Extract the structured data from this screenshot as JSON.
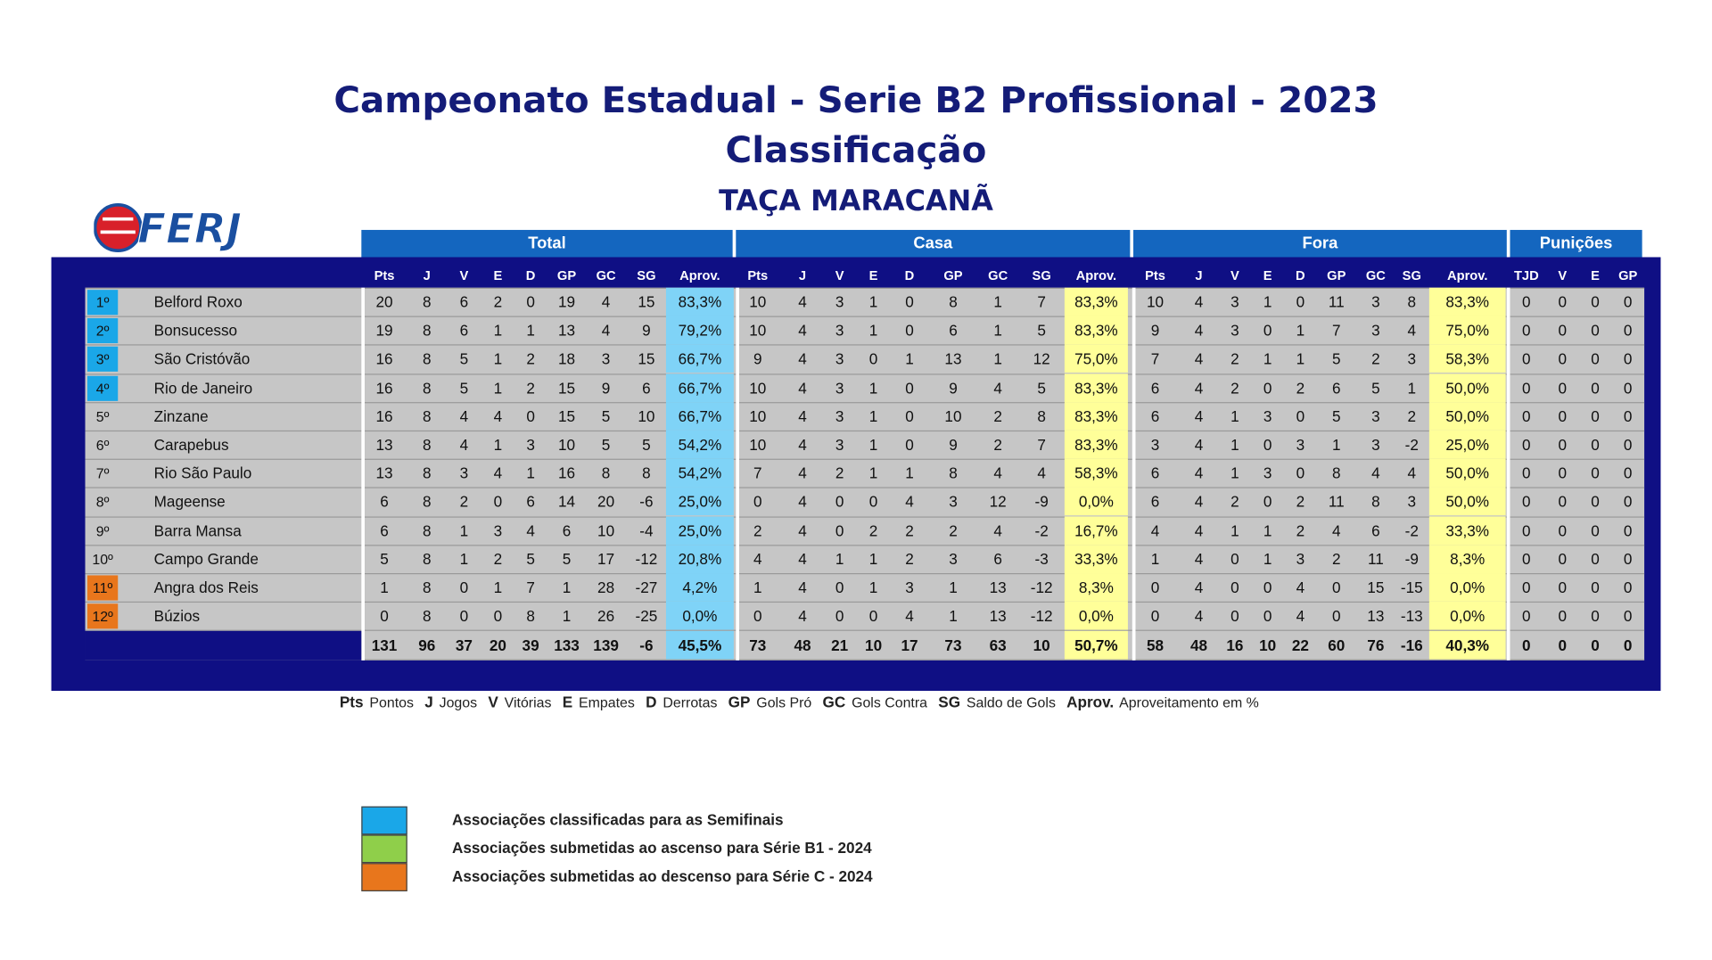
{
  "titles": {
    "main": "Campeonato Estadual - Serie B2 Profissional - 2023",
    "sub": "Classificação",
    "cup": "TAÇA MARACANÃ"
  },
  "logo": {
    "text": "FERJ",
    "colors": {
      "ball": "#d8202a",
      "letters": "#1a4fa0"
    }
  },
  "groups": {
    "total": "Total",
    "casa": "Casa",
    "fora": "Fora",
    "punicoes": "Punições"
  },
  "columns": {
    "block": [
      "Pts",
      "J",
      "V",
      "E",
      "D",
      "GP",
      "GC",
      "SG",
      "Aprov."
    ],
    "punicoes": [
      "TJD",
      "V",
      "E",
      "GP"
    ]
  },
  "colors": {
    "panel": "#0f0f84",
    "group_header": "#1466bf",
    "semifinal": "#1aa7e8",
    "ascenso": "#8fcf4a",
    "descenso": "#e8761c",
    "aprov_total": "#7fd3f7",
    "aprov_home_away": "#ffff99"
  },
  "rows": [
    {
      "rank": "1º",
      "team": "Belford Roxo",
      "status": "semifinal",
      "total": [
        "20",
        "8",
        "6",
        "2",
        "0",
        "19",
        "4",
        "15",
        "83,3%"
      ],
      "casa": [
        "10",
        "4",
        "3",
        "1",
        "0",
        "8",
        "1",
        "7",
        "83,3%"
      ],
      "fora": [
        "10",
        "4",
        "3",
        "1",
        "0",
        "11",
        "3",
        "8",
        "83,3%"
      ],
      "pun": [
        "0",
        "0",
        "0",
        "0"
      ]
    },
    {
      "rank": "2º",
      "team": "Bonsucesso",
      "status": "semifinal",
      "total": [
        "19",
        "8",
        "6",
        "1",
        "1",
        "13",
        "4",
        "9",
        "79,2%"
      ],
      "casa": [
        "10",
        "4",
        "3",
        "1",
        "0",
        "6",
        "1",
        "5",
        "83,3%"
      ],
      "fora": [
        "9",
        "4",
        "3",
        "0",
        "1",
        "7",
        "3",
        "4",
        "75,0%"
      ],
      "pun": [
        "0",
        "0",
        "0",
        "0"
      ]
    },
    {
      "rank": "3º",
      "team": "São Cristóvão",
      "status": "semifinal",
      "total": [
        "16",
        "8",
        "5",
        "1",
        "2",
        "18",
        "3",
        "15",
        "66,7%"
      ],
      "casa": [
        "9",
        "4",
        "3",
        "0",
        "1",
        "13",
        "1",
        "12",
        "75,0%"
      ],
      "fora": [
        "7",
        "4",
        "2",
        "1",
        "1",
        "5",
        "2",
        "3",
        "58,3%"
      ],
      "pun": [
        "0",
        "0",
        "0",
        "0"
      ]
    },
    {
      "rank": "4º",
      "team": "Rio de Janeiro",
      "status": "semifinal",
      "total": [
        "16",
        "8",
        "5",
        "1",
        "2",
        "15",
        "9",
        "6",
        "66,7%"
      ],
      "casa": [
        "10",
        "4",
        "3",
        "1",
        "0",
        "9",
        "4",
        "5",
        "83,3%"
      ],
      "fora": [
        "6",
        "4",
        "2",
        "0",
        "2",
        "6",
        "5",
        "1",
        "50,0%"
      ],
      "pun": [
        "0",
        "0",
        "0",
        "0"
      ]
    },
    {
      "rank": "5º",
      "team": "Zinzane",
      "status": "",
      "total": [
        "16",
        "8",
        "4",
        "4",
        "0",
        "15",
        "5",
        "10",
        "66,7%"
      ],
      "casa": [
        "10",
        "4",
        "3",
        "1",
        "0",
        "10",
        "2",
        "8",
        "83,3%"
      ],
      "fora": [
        "6",
        "4",
        "1",
        "3",
        "0",
        "5",
        "3",
        "2",
        "50,0%"
      ],
      "pun": [
        "0",
        "0",
        "0",
        "0"
      ]
    },
    {
      "rank": "6º",
      "team": "Carapebus",
      "status": "",
      "total": [
        "13",
        "8",
        "4",
        "1",
        "3",
        "10",
        "5",
        "5",
        "54,2%"
      ],
      "casa": [
        "10",
        "4",
        "3",
        "1",
        "0",
        "9",
        "2",
        "7",
        "83,3%"
      ],
      "fora": [
        "3",
        "4",
        "1",
        "0",
        "3",
        "1",
        "3",
        "-2",
        "25,0%"
      ],
      "pun": [
        "0",
        "0",
        "0",
        "0"
      ]
    },
    {
      "rank": "7º",
      "team": "Rio São Paulo",
      "status": "",
      "total": [
        "13",
        "8",
        "3",
        "4",
        "1",
        "16",
        "8",
        "8",
        "54,2%"
      ],
      "casa": [
        "7",
        "4",
        "2",
        "1",
        "1",
        "8",
        "4",
        "4",
        "58,3%"
      ],
      "fora": [
        "6",
        "4",
        "1",
        "3",
        "0",
        "8",
        "4",
        "4",
        "50,0%"
      ],
      "pun": [
        "0",
        "0",
        "0",
        "0"
      ]
    },
    {
      "rank": "8º",
      "team": "Mageense",
      "status": "",
      "total": [
        "6",
        "8",
        "2",
        "0",
        "6",
        "14",
        "20",
        "-6",
        "25,0%"
      ],
      "casa": [
        "0",
        "4",
        "0",
        "0",
        "4",
        "3",
        "12",
        "-9",
        "0,0%"
      ],
      "fora": [
        "6",
        "4",
        "2",
        "0",
        "2",
        "11",
        "8",
        "3",
        "50,0%"
      ],
      "pun": [
        "0",
        "0",
        "0",
        "0"
      ]
    },
    {
      "rank": "9º",
      "team": "Barra Mansa",
      "status": "",
      "total": [
        "6",
        "8",
        "1",
        "3",
        "4",
        "6",
        "10",
        "-4",
        "25,0%"
      ],
      "casa": [
        "2",
        "4",
        "0",
        "2",
        "2",
        "2",
        "4",
        "-2",
        "16,7%"
      ],
      "fora": [
        "4",
        "4",
        "1",
        "1",
        "2",
        "4",
        "6",
        "-2",
        "33,3%"
      ],
      "pun": [
        "0",
        "0",
        "0",
        "0"
      ]
    },
    {
      "rank": "10º",
      "team": "Campo Grande",
      "status": "",
      "total": [
        "5",
        "8",
        "1",
        "2",
        "5",
        "5",
        "17",
        "-12",
        "20,8%"
      ],
      "casa": [
        "4",
        "4",
        "1",
        "1",
        "2",
        "3",
        "6",
        "-3",
        "33,3%"
      ],
      "fora": [
        "1",
        "4",
        "0",
        "1",
        "3",
        "2",
        "11",
        "-9",
        "8,3%"
      ],
      "pun": [
        "0",
        "0",
        "0",
        "0"
      ]
    },
    {
      "rank": "11º",
      "team": "Angra dos Reis",
      "status": "descenso",
      "total": [
        "1",
        "8",
        "0",
        "1",
        "7",
        "1",
        "28",
        "-27",
        "4,2%"
      ],
      "casa": [
        "1",
        "4",
        "0",
        "1",
        "3",
        "1",
        "13",
        "-12",
        "8,3%"
      ],
      "fora": [
        "0",
        "4",
        "0",
        "0",
        "4",
        "0",
        "15",
        "-15",
        "0,0%"
      ],
      "pun": [
        "0",
        "0",
        "0",
        "0"
      ]
    },
    {
      "rank": "12º",
      "team": "Búzios",
      "status": "descenso",
      "total": [
        "0",
        "8",
        "0",
        "0",
        "8",
        "1",
        "26",
        "-25",
        "0,0%"
      ],
      "casa": [
        "0",
        "4",
        "0",
        "0",
        "4",
        "1",
        "13",
        "-12",
        "0,0%"
      ],
      "fora": [
        "0",
        "4",
        "0",
        "0",
        "4",
        "0",
        "13",
        "-13",
        "0,0%"
      ],
      "pun": [
        "0",
        "0",
        "0",
        "0"
      ]
    }
  ],
  "totals": {
    "total": [
      "131",
      "96",
      "37",
      "20",
      "39",
      "133",
      "139",
      "-6",
      "45,5%"
    ],
    "casa": [
      "73",
      "48",
      "21",
      "10",
      "17",
      "73",
      "63",
      "10",
      "50,7%"
    ],
    "fora": [
      "58",
      "48",
      "16",
      "10",
      "22",
      "60",
      "76",
      "-16",
      "40,3%"
    ],
    "pun": [
      "0",
      "0",
      "0",
      "0"
    ]
  },
  "abbreviations": [
    {
      "k": "Pts",
      "v": "Pontos"
    },
    {
      "k": "J",
      "v": "Jogos"
    },
    {
      "k": "V",
      "v": "Vitórias"
    },
    {
      "k": "E",
      "v": "Empates"
    },
    {
      "k": "D",
      "v": "Derrotas"
    },
    {
      "k": "GP",
      "v": "Gols Pró"
    },
    {
      "k": "GC",
      "v": "Gols Contra"
    },
    {
      "k": "SG",
      "v": "Saldo de Gols"
    },
    {
      "k": "Aprov.",
      "v": "Aproveitamento em %"
    }
  ],
  "legend": [
    {
      "color": "#1aa7e8",
      "text": "Associações classificadas para as Semifinais"
    },
    {
      "color": "#8fcf4a",
      "text": "Associações submetidas ao ascenso para Série B1 - 2024"
    },
    {
      "color": "#e8761c",
      "text": "Associações submetidas ao descenso para Série C - 2024"
    }
  ]
}
